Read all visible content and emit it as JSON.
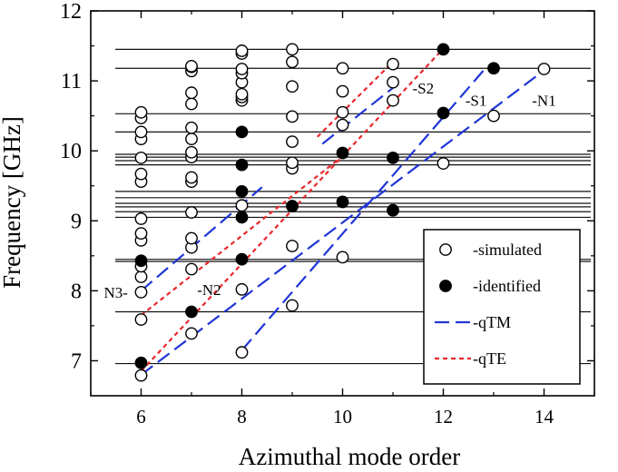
{
  "chart_data": {
    "type": "scatter",
    "title": "",
    "xlabel": "Azimuthal mode order",
    "ylabel": "Frequency [GHz]",
    "xlim": [
      5,
      15
    ],
    "ylim": [
      6.5,
      12
    ],
    "xticks": [
      6,
      8,
      10,
      12,
      14
    ],
    "yticks": [
      7,
      8,
      9,
      10,
      11,
      12
    ],
    "hlines": [
      6.96,
      7.7,
      8.42,
      8.45,
      9.05,
      9.13,
      9.2,
      9.25,
      9.33,
      9.42,
      9.8,
      9.86,
      9.91,
      9.95,
      10.27,
      10.53,
      11.18,
      11.45
    ],
    "series": [
      {
        "name": "-simulated",
        "marker": "open-circle",
        "points": [
          [
            6,
            6.79
          ],
          [
            6,
            7.59
          ],
          [
            6,
            7.98
          ],
          [
            6,
            8.2
          ],
          [
            6,
            8.35
          ],
          [
            6,
            8.72
          ],
          [
            6,
            8.82
          ],
          [
            6,
            9.03
          ],
          [
            6,
            9.56
          ],
          [
            6,
            9.67
          ],
          [
            6,
            9.9
          ],
          [
            6,
            10.17
          ],
          [
            6,
            10.27
          ],
          [
            6,
            10.47
          ],
          [
            6,
            10.55
          ],
          [
            7,
            7.39
          ],
          [
            7,
            8.31
          ],
          [
            7,
            8.62
          ],
          [
            7,
            8.75
          ],
          [
            7,
            9.12
          ],
          [
            7,
            9.56
          ],
          [
            7,
            9.62
          ],
          [
            7,
            9.91
          ],
          [
            7,
            9.98
          ],
          [
            7,
            10.17
          ],
          [
            7,
            10.33
          ],
          [
            7,
            10.67
          ],
          [
            7,
            10.83
          ],
          [
            7,
            11.14
          ],
          [
            7,
            11.2
          ],
          [
            7,
            11.21
          ],
          [
            8,
            7.12
          ],
          [
            8,
            8.02
          ],
          [
            8,
            9.22
          ],
          [
            8,
            10.72
          ],
          [
            8,
            10.77
          ],
          [
            8,
            10.81
          ],
          [
            8,
            10.98
          ],
          [
            8,
            11.11
          ],
          [
            8,
            11.17
          ],
          [
            8,
            11.39
          ],
          [
            8,
            11.43
          ],
          [
            9,
            7.79
          ],
          [
            9,
            8.64
          ],
          [
            9,
            9.75
          ],
          [
            9,
            9.83
          ],
          [
            9,
            10.13
          ],
          [
            9,
            10.49
          ],
          [
            9,
            10.92
          ],
          [
            9,
            11.27
          ],
          [
            9,
            11.45
          ],
          [
            10,
            8.48
          ],
          [
            10,
            10.37
          ],
          [
            10,
            10.55
          ],
          [
            10,
            10.85
          ],
          [
            10,
            11.18
          ],
          [
            11,
            10.72
          ],
          [
            11,
            10.98
          ],
          [
            11,
            11.24
          ],
          [
            12,
            9.82
          ],
          [
            13,
            10.5
          ],
          [
            14,
            11.17
          ]
        ]
      },
      {
        "name": "-identified",
        "marker": "filled-circle",
        "points": [
          [
            6,
            6.97
          ],
          [
            6,
            8.43
          ],
          [
            7,
            7.7
          ],
          [
            8,
            8.45
          ],
          [
            8,
            9.05
          ],
          [
            8,
            9.42
          ],
          [
            8,
            9.8
          ],
          [
            8,
            10.27
          ],
          [
            9,
            9.21
          ],
          [
            10,
            9.27
          ],
          [
            10,
            9.97
          ],
          [
            11,
            9.15
          ],
          [
            11,
            9.9
          ],
          [
            12,
            10.54
          ],
          [
            12,
            11.45
          ],
          [
            13,
            11.18
          ]
        ]
      }
    ],
    "lines": [
      {
        "name": "-qTM",
        "style": "dashed",
        "color": "#1f35d6",
        "label": "N1",
        "x": [
          6,
          14
        ],
        "y": [
          6.8,
          11.15
        ]
      },
      {
        "name": "-qTM",
        "style": "dashed",
        "color": "#1f35d6",
        "label": "S1",
        "x": [
          8,
          12.8
        ],
        "y": [
          7.15,
          11.15
        ]
      },
      {
        "name": "-qTM",
        "style": "dashed",
        "color": "#1f35d6",
        "label": "N3",
        "x": [
          6,
          8.4
        ],
        "y": [
          8.0,
          9.48
        ]
      },
      {
        "name": "-qTM",
        "style": "dashed",
        "color": "#1f35d6",
        "label": "S2",
        "x": [
          9.6,
          11
        ],
        "y": [
          10.1,
          10.9
        ]
      },
      {
        "name": "-qTE",
        "style": "dotted",
        "color": "#e8272b",
        "label": "",
        "x": [
          6,
          12.05
        ],
        "y": [
          6.85,
          11.5
        ]
      },
      {
        "name": "-qTE",
        "style": "dotted",
        "color": "#e8272b",
        "label": "N2",
        "x": [
          6,
          10.1
        ],
        "y": [
          7.65,
          9.98
        ]
      },
      {
        "name": "-qTE",
        "style": "dotted",
        "color": "#e8272b",
        "label": "",
        "x": [
          9.5,
          10.9
        ],
        "y": [
          10.2,
          11.2
        ]
      }
    ],
    "annotations": [
      {
        "text": "N3-",
        "x": 5.5,
        "y": 7.98
      },
      {
        "text": "-N2",
        "x": 7.35,
        "y": 8.02
      },
      {
        "text": "-S2",
        "x": 11.6,
        "y": 10.9
      },
      {
        "text": "-S1",
        "x": 12.65,
        "y": 10.72
      },
      {
        "text": "-N1",
        "x": 14.0,
        "y": 10.72
      }
    ],
    "legend": {
      "position": "bottom-right",
      "entries": [
        {
          "label": "-simulated",
          "marker": "open-circle"
        },
        {
          "label": "-identified",
          "marker": "filled-circle"
        },
        {
          "label": "-qTM",
          "marker": "dashed-blue"
        },
        {
          "label": "-qTE",
          "marker": "dotted-red"
        }
      ]
    }
  }
}
